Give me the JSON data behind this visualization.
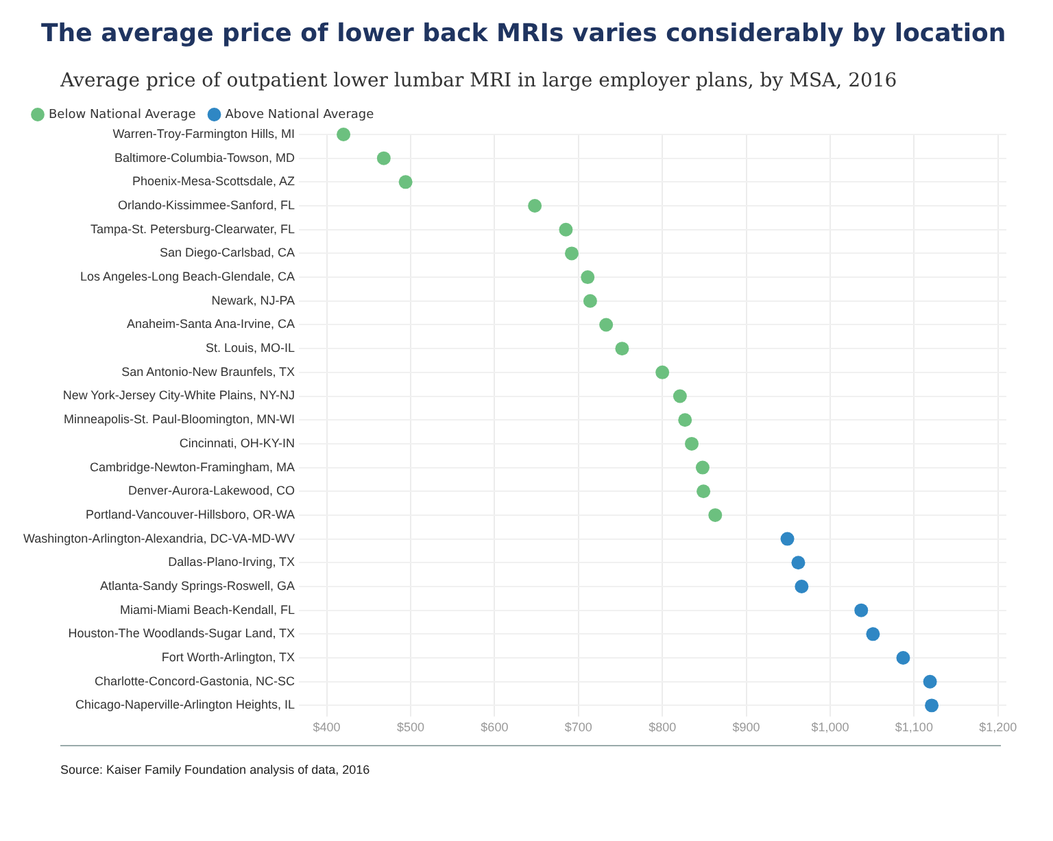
{
  "chart_data": {
    "type": "scatter",
    "title": "The average price of lower back MRIs varies considerably by location",
    "subtitle": "Average price of outpatient lower lumbar MRI in large employer plans, by MSA, 2016",
    "categories": [
      "Warren-Troy-Farmington Hills, MI",
      "Baltimore-Columbia-Towson, MD",
      "Phoenix-Mesa-Scottsdale, AZ",
      "Orlando-Kissimmee-Sanford, FL",
      "Tampa-St. Petersburg-Clearwater, FL",
      "San Diego-Carlsbad, CA",
      "Los Angeles-Long Beach-Glendale, CA",
      "Newark, NJ-PA",
      "Anaheim-Santa Ana-Irvine, CA",
      "St. Louis, MO-IL",
      "San Antonio-New Braunfels, TX",
      "New York-Jersey City-White Plains, NY-NJ",
      "Minneapolis-St. Paul-Bloomington, MN-WI",
      "Cincinnati, OH-KY-IN",
      "Cambridge-Newton-Framingham, MA",
      "Denver-Aurora-Lakewood, CO",
      "Portland-Vancouver-Hillsboro, OR-WA",
      "Washington-Arlington-Alexandria, DC-VA-MD-WV",
      "Dallas-Plano-Irving, TX",
      "Atlanta-Sandy Springs-Roswell, GA",
      "Miami-Miami Beach-Kendall, FL",
      "Houston-The Woodlands-Sugar Land, TX",
      "Fort Worth-Arlington, TX",
      "Charlotte-Concord-Gastonia, NC-SC",
      "Chicago-Naperville-Arlington Heights, IL"
    ],
    "orientation": "horizontal",
    "series": [
      {
        "name": "Below National Average",
        "color": "#6cc07f",
        "values": [
          420,
          468,
          494,
          648,
          685,
          692,
          711,
          714,
          733,
          752,
          800,
          821,
          827,
          835,
          848,
          849,
          863,
          null,
          null,
          null,
          null,
          null,
          null,
          null,
          null
        ]
      },
      {
        "name": "Above National Average",
        "color": "#2f87c4",
        "values": [
          null,
          null,
          null,
          null,
          null,
          null,
          null,
          null,
          null,
          null,
          null,
          null,
          null,
          null,
          null,
          null,
          null,
          949,
          962,
          966,
          1037,
          1051,
          1087,
          1119,
          1121
        ]
      }
    ],
    "xlim": [
      380,
      1210
    ],
    "xticks": [
      {
        "value": 400,
        "label": "$400"
      },
      {
        "value": 500,
        "label": "$500"
      },
      {
        "value": 600,
        "label": "$600"
      },
      {
        "value": 700,
        "label": "$700"
      },
      {
        "value": 800,
        "label": "$800"
      },
      {
        "value": 900,
        "label": "$900"
      },
      {
        "value": 1000,
        "label": "$1,000"
      },
      {
        "value": 1100,
        "label": "$1,100"
      },
      {
        "value": 1200,
        "label": "$1,200"
      }
    ],
    "grid": true,
    "legend": "top left",
    "marker": "circle",
    "annotations": [
      "Source: Kaiser Family Foundation analysis of data, 2016"
    ]
  }
}
